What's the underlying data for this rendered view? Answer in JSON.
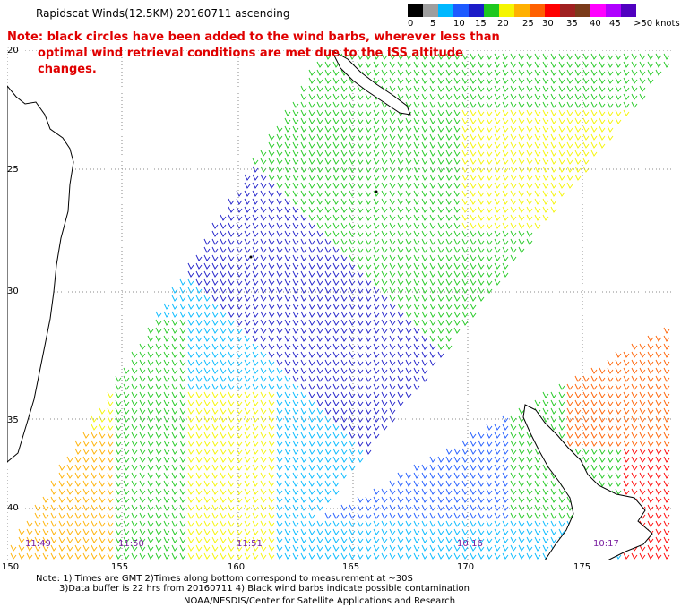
{
  "title": "Rapidscat Winds(12.5KM) 20160711 ascending",
  "note_line1": "Note: black circles have been added to the wind barbs, wherever less than",
  "note_line2": "optimal wind retrieval conditions are met due to the ISS altitude changes.",
  "colorbar": {
    "colors": [
      "#000000",
      "#9e9e9e",
      "#00b8ff",
      "#1e5aff",
      "#1c1cc8",
      "#1fc81f",
      "#f5f500",
      "#ffb000",
      "#ff6000",
      "#ff0000",
      "#a02020",
      "#7a3a1a",
      "#ff00ff",
      "#b000ff",
      "#5000c0"
    ],
    "labels": [
      "0",
      "5",
      "10",
      "15",
      "20",
      "25",
      "30",
      "35",
      "40",
      "45",
      ">50 knots"
    ]
  },
  "lon_labels": [
    "150",
    "155",
    "160",
    "165",
    "170",
    "175"
  ],
  "lat_labels": [
    "20",
    "25",
    "30",
    "35",
    "40"
  ],
  "time_labels": [
    "11:49",
    "11:50",
    "11:51",
    "10:16",
    "10:17"
  ],
  "footer": {
    "line1": "Note: 1) Times are GMT 2)Times along bottom correspond to measurement at ~30S",
    "line2": "3)Data buffer is 22 hrs from 20160711 4) Black wind barbs indicate possible contamination",
    "line3": "NOAA/NESDIS/Center for Satellite Applications and Research"
  },
  "colors": {
    "note": "#e00000",
    "time_label": "#7a1fa0",
    "wind_low": "#00b8ff",
    "wind_mid": "#1fc81f",
    "wind_high": "#ffb000"
  }
}
